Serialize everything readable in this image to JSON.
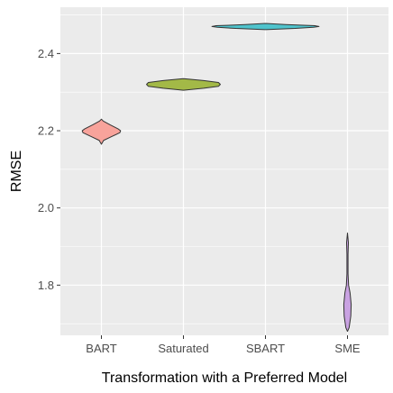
{
  "chart_data": {
    "type": "violin",
    "title": "",
    "xlabel": "Transformation with a Preferred Model",
    "ylabel": "RMSE",
    "ylim": [
      1.67,
      2.52
    ],
    "y_ticks": [
      1.8,
      2.0,
      2.2,
      2.4
    ],
    "y_tick_labels": [
      "1.8",
      "2.0",
      "2.2",
      "2.4"
    ],
    "grid": true,
    "categories": [
      "BART",
      "Saturated",
      "SBART",
      "SME"
    ],
    "violins": [
      {
        "category": "BART",
        "color": "#F8A39B",
        "profile": [
          [
            2.165,
            0.0
          ],
          [
            2.175,
            0.06
          ],
          [
            2.185,
            0.28
          ],
          [
            2.195,
            0.5
          ],
          [
            2.2,
            0.52
          ],
          [
            2.205,
            0.45
          ],
          [
            2.215,
            0.24
          ],
          [
            2.225,
            0.05
          ],
          [
            2.23,
            0.0
          ]
        ]
      },
      {
        "category": "Saturated",
        "color": "#A3B947",
        "profile": [
          [
            2.305,
            0.0
          ],
          [
            2.31,
            0.55
          ],
          [
            2.315,
            0.95
          ],
          [
            2.32,
            1.0
          ],
          [
            2.325,
            0.95
          ],
          [
            2.33,
            0.55
          ],
          [
            2.335,
            0.0
          ]
        ]
      },
      {
        "category": "SBART",
        "color": "#4FC3CC",
        "profile": [
          [
            2.462,
            0.0
          ],
          [
            2.465,
            0.8
          ],
          [
            2.468,
            1.3
          ],
          [
            2.47,
            1.45
          ],
          [
            2.472,
            1.35
          ],
          [
            2.475,
            0.55
          ],
          [
            2.478,
            0.0
          ]
        ]
      },
      {
        "category": "SME",
        "color": "#C9A2E2",
        "profile": [
          [
            1.68,
            0.0
          ],
          [
            1.69,
            0.045
          ],
          [
            1.72,
            0.09
          ],
          [
            1.75,
            0.1
          ],
          [
            1.78,
            0.07
          ],
          [
            1.8,
            0.03
          ],
          [
            1.83,
            0.015
          ],
          [
            1.88,
            0.015
          ],
          [
            1.91,
            0.025
          ],
          [
            1.935,
            0.0
          ]
        ]
      }
    ]
  }
}
